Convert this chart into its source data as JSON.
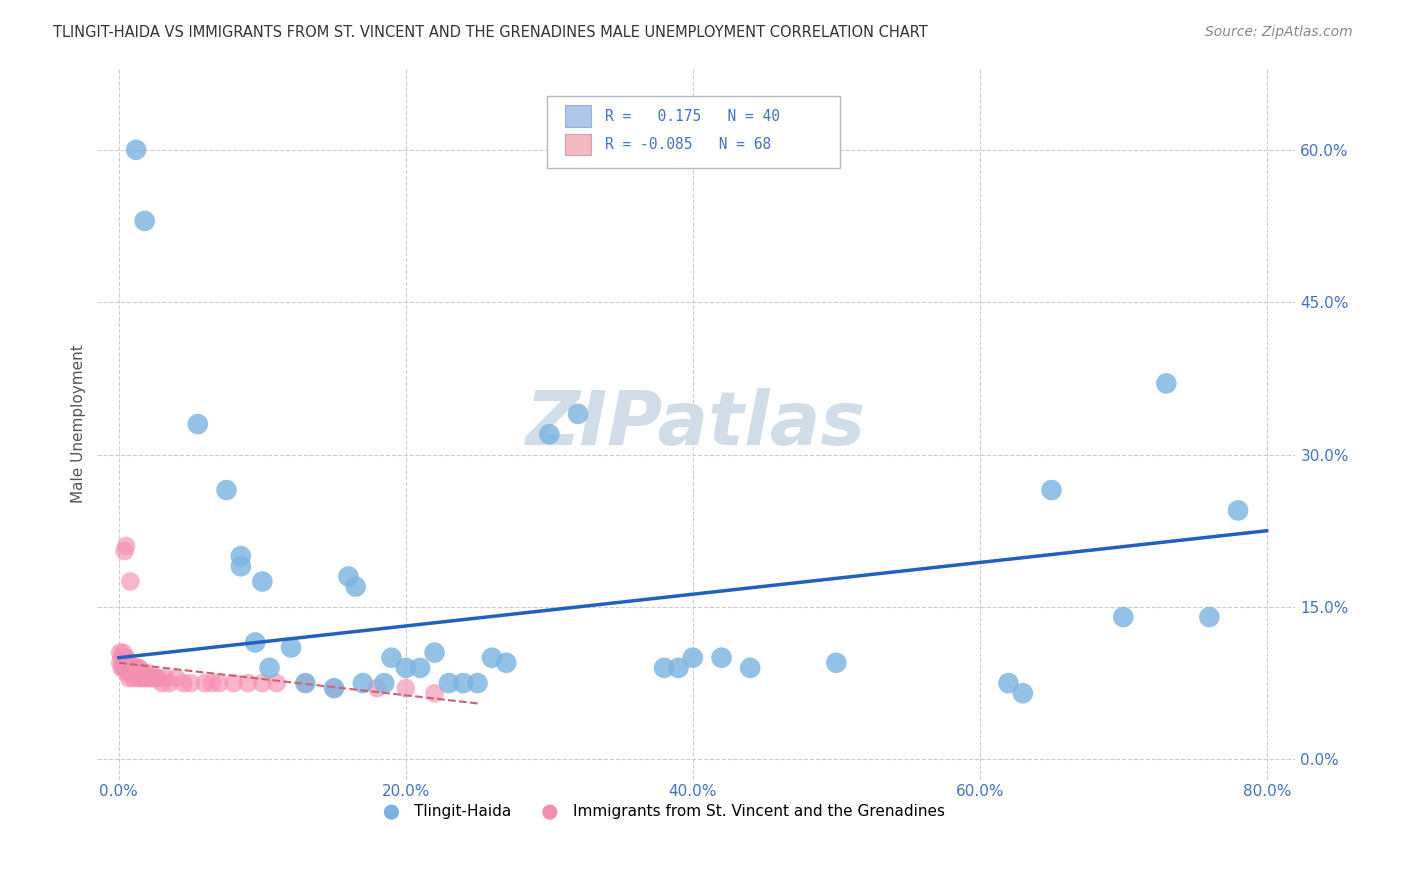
{
  "title": "TLINGIT-HAIDA VS IMMIGRANTS FROM ST. VINCENT AND THE GRENADINES MALE UNEMPLOYMENT CORRELATION CHART",
  "source": "Source: ZipAtlas.com",
  "xlabel_ticks": [
    "0.0%",
    "20.0%",
    "40.0%",
    "60.0%",
    "80.0%"
  ],
  "ylabel_ticks": [
    "0.0%",
    "15.0%",
    "30.0%",
    "45.0%",
    "60.0%"
  ],
  "xlabel_vals": [
    0.0,
    0.2,
    0.4,
    0.6,
    0.8
  ],
  "ylabel_vals": [
    0.0,
    0.15,
    0.3,
    0.45,
    0.6
  ],
  "ylabel_label": "Male Unemployment",
  "legend_entry1_color": "#aec6e8",
  "legend_entry2_color": "#f4b8c1",
  "tlingit_color": "#7ab3e0",
  "immigrants_color": "#f48fb1",
  "trendline_blue_color": "#2060c0",
  "trendline_pink_color": "#d06070",
  "background_color": "#ffffff",
  "grid_color": "#cccccc",
  "blue_scatter_x": [
    0.012,
    0.018,
    0.055,
    0.075,
    0.085,
    0.085,
    0.095,
    0.1,
    0.105,
    0.12,
    0.13,
    0.15,
    0.16,
    0.165,
    0.17,
    0.185,
    0.19,
    0.2,
    0.21,
    0.22,
    0.23,
    0.24,
    0.25,
    0.26,
    0.27,
    0.3,
    0.32,
    0.38,
    0.39,
    0.4,
    0.42,
    0.44,
    0.5,
    0.62,
    0.63,
    0.65,
    0.7,
    0.73,
    0.76,
    0.78
  ],
  "blue_scatter_y": [
    0.6,
    0.53,
    0.33,
    0.265,
    0.19,
    0.2,
    0.115,
    0.175,
    0.09,
    0.11,
    0.075,
    0.07,
    0.18,
    0.17,
    0.075,
    0.075,
    0.1,
    0.09,
    0.09,
    0.105,
    0.075,
    0.075,
    0.075,
    0.1,
    0.095,
    0.32,
    0.34,
    0.09,
    0.09,
    0.1,
    0.1,
    0.09,
    0.095,
    0.075,
    0.065,
    0.265,
    0.14,
    0.37,
    0.14,
    0.245
  ],
  "pink_scatter_x": [
    0.001,
    0.001,
    0.002,
    0.002,
    0.003,
    0.003,
    0.003,
    0.004,
    0.004,
    0.004,
    0.005,
    0.005,
    0.005,
    0.006,
    0.006,
    0.006,
    0.007,
    0.007,
    0.007,
    0.008,
    0.008,
    0.009,
    0.009,
    0.01,
    0.01,
    0.011,
    0.011,
    0.012,
    0.012,
    0.013,
    0.013,
    0.014,
    0.014,
    0.015,
    0.015,
    0.016,
    0.017,
    0.018,
    0.019,
    0.02,
    0.021,
    0.022,
    0.023,
    0.025,
    0.026,
    0.027,
    0.03,
    0.032,
    0.035,
    0.04,
    0.045,
    0.05,
    0.06,
    0.065,
    0.07,
    0.08,
    0.09,
    0.1,
    0.11,
    0.13,
    0.15,
    0.18,
    0.2,
    0.22,
    0.005,
    0.008,
    0.003,
    0.004
  ],
  "pink_scatter_y": [
    0.105,
    0.095,
    0.09,
    0.1,
    0.09,
    0.1,
    0.095,
    0.09,
    0.1,
    0.095,
    0.09,
    0.1,
    0.095,
    0.085,
    0.09,
    0.095,
    0.08,
    0.09,
    0.095,
    0.085,
    0.09,
    0.085,
    0.09,
    0.08,
    0.09,
    0.085,
    0.09,
    0.085,
    0.09,
    0.08,
    0.09,
    0.085,
    0.09,
    0.08,
    0.085,
    0.085,
    0.08,
    0.085,
    0.08,
    0.085,
    0.08,
    0.08,
    0.08,
    0.08,
    0.08,
    0.08,
    0.075,
    0.08,
    0.075,
    0.08,
    0.075,
    0.075,
    0.075,
    0.075,
    0.075,
    0.075,
    0.075,
    0.075,
    0.075,
    0.075,
    0.07,
    0.07,
    0.07,
    0.065,
    0.21,
    0.175,
    0.105,
    0.095
  ],
  "pink_outlier_x": [
    0.004
  ],
  "pink_outlier_y": [
    0.205
  ],
  "xlim": [
    -0.015,
    0.82
  ],
  "ylim": [
    -0.02,
    0.68
  ],
  "blue_trend_x0": 0.0,
  "blue_trend_y0": 0.1,
  "blue_trend_x1": 0.8,
  "blue_trend_y1": 0.225,
  "pink_trend_x0": 0.0,
  "pink_trend_y0": 0.095,
  "pink_trend_x1": 0.25,
  "pink_trend_y1": 0.055,
  "title_fontsize": 10.5,
  "axis_fontsize": 11,
  "tick_fontsize": 11,
  "source_fontsize": 10
}
